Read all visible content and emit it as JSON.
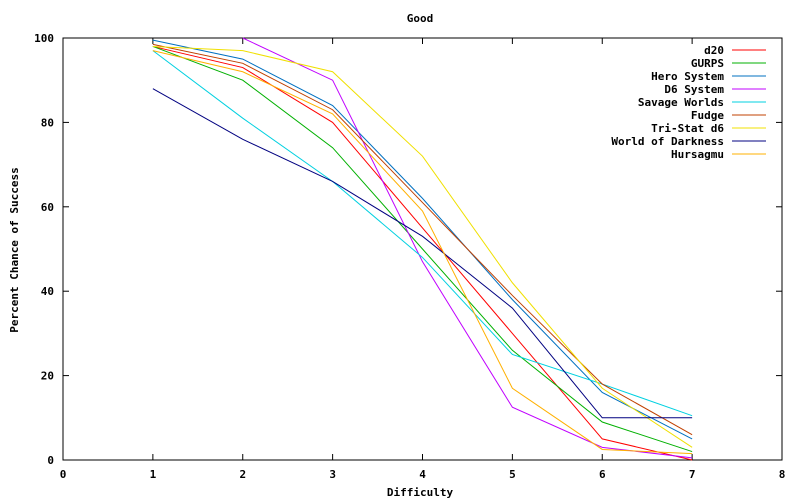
{
  "chart_data": {
    "type": "line",
    "title": "Good",
    "xlabel": "Difficulty",
    "ylabel": "Percent Chance of Success",
    "xlim": [
      0,
      8
    ],
    "ylim": [
      0,
      100
    ],
    "xticks": [
      0,
      1,
      2,
      3,
      4,
      5,
      6,
      7,
      8
    ],
    "yticks": [
      0,
      20,
      40,
      60,
      80,
      100
    ],
    "grid": false,
    "legend_position": "top-right",
    "series": [
      {
        "name": "d20",
        "color": "#ff0000",
        "points": [
          [
            1,
            98
          ],
          [
            2,
            93
          ],
          [
            3,
            80
          ],
          [
            4,
            55
          ],
          [
            5,
            30
          ],
          [
            6,
            5
          ],
          [
            7,
            0
          ]
        ]
      },
      {
        "name": "GURPS",
        "color": "#00b000",
        "points": [
          [
            1,
            98
          ],
          [
            2,
            90
          ],
          [
            3,
            74
          ],
          [
            4,
            50
          ],
          [
            5,
            26
          ],
          [
            6,
            9
          ],
          [
            7,
            2
          ]
        ]
      },
      {
        "name": "Hero System",
        "color": "#0070c0",
        "points": [
          [
            1,
            99.5
          ],
          [
            2,
            95
          ],
          [
            3,
            84
          ],
          [
            4,
            62
          ],
          [
            5,
            38
          ],
          [
            6,
            16
          ],
          [
            7,
            5
          ]
        ]
      },
      {
        "name": "D6 System",
        "color": "#c000ff",
        "points": [
          [
            2,
            100
          ],
          [
            3,
            90
          ],
          [
            4,
            47
          ],
          [
            5,
            12.5
          ],
          [
            6,
            3
          ],
          [
            7,
            0.5
          ]
        ]
      },
      {
        "name": "Savage Worlds",
        "color": "#00d0e0",
        "points": [
          [
            1,
            97
          ],
          [
            2,
            81
          ],
          [
            3,
            66
          ],
          [
            4,
            48
          ],
          [
            5,
            25
          ],
          [
            6,
            18
          ],
          [
            7,
            10.5
          ]
        ]
      },
      {
        "name": "Fudge",
        "color": "#c04000",
        "points": [
          [
            1,
            98.5
          ],
          [
            2,
            94
          ],
          [
            3,
            83
          ],
          [
            4,
            61
          ],
          [
            5,
            39
          ],
          [
            6,
            18
          ],
          [
            7,
            6
          ]
        ]
      },
      {
        "name": "Tri-Stat d6",
        "color": "#f0e000",
        "points": [
          [
            1,
            98
          ],
          [
            2,
            97
          ],
          [
            3,
            92
          ],
          [
            4,
            72
          ],
          [
            5,
            42
          ],
          [
            6,
            17
          ],
          [
            7,
            3
          ]
        ]
      },
      {
        "name": "World of Darkness",
        "color": "#000080",
        "points": [
          [
            1,
            88
          ],
          [
            2,
            76
          ],
          [
            3,
            66
          ],
          [
            4,
            53
          ],
          [
            5,
            36
          ],
          [
            6,
            10
          ],
          [
            7,
            10
          ]
        ]
      },
      {
        "name": "Hursagmu",
        "color": "#ffb000",
        "points": [
          [
            1,
            97
          ],
          [
            2,
            92
          ],
          [
            3,
            82
          ],
          [
            4,
            59
          ],
          [
            5,
            17
          ],
          [
            6,
            2.5
          ],
          [
            7,
            1.5
          ]
        ]
      }
    ]
  }
}
